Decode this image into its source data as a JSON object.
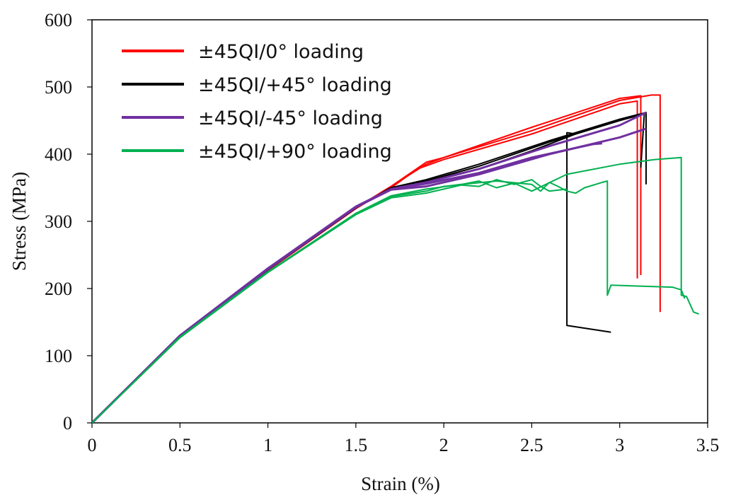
{
  "chart_data": {
    "type": "line",
    "title": "",
    "xlabel": "Strain (%)",
    "ylabel": "Stress (MPa)",
    "xlim": [
      0,
      3.5
    ],
    "ylim": [
      0,
      600
    ],
    "xticks": [
      "0",
      "0.5",
      "1",
      "1.5",
      "2",
      "2.5",
      "3",
      "3.5"
    ],
    "yticks": [
      "0",
      "100",
      "200",
      "300",
      "400",
      "500",
      "600"
    ],
    "grid": false,
    "legend_position": "top-left",
    "series": [
      {
        "name": "±45QI/0° loading",
        "color": "#ff0000",
        "curves": [
          [
            [
              0,
              0
            ],
            [
              0.5,
              128
            ],
            [
              1,
              228
            ],
            [
              1.5,
              320
            ],
            [
              1.7,
              352
            ],
            [
              1.9,
              388
            ],
            [
              2.0,
              395
            ],
            [
              2.5,
              440
            ],
            [
              3.0,
              483
            ],
            [
              3.12,
              487
            ],
            [
              3.12,
              220
            ]
          ],
          [
            [
              0,
              0
            ],
            [
              0.5,
              127
            ],
            [
              1,
              227
            ],
            [
              1.5,
              319
            ],
            [
              1.7,
              350
            ],
            [
              1.85,
              378
            ],
            [
              2.0,
              392
            ],
            [
              2.5,
              430
            ],
            [
              3.0,
              475
            ],
            [
              3.1,
              479
            ],
            [
              3.1,
              215
            ]
          ],
          [
            [
              0,
              0
            ],
            [
              0.5,
              128
            ],
            [
              1,
              228
            ],
            [
              1.5,
              320
            ],
            [
              1.7,
              352
            ],
            [
              1.9,
              385
            ],
            [
              2.0,
              395
            ],
            [
              2.5,
              435
            ],
            [
              3.0,
              480
            ],
            [
              3.18,
              488
            ],
            [
              3.23,
              488
            ],
            [
              3.23,
              165
            ]
          ]
        ]
      },
      {
        "name": "±45QI/+45° loading",
        "color": "#000000",
        "curves": [
          [
            [
              0,
              0
            ],
            [
              0.5,
              128
            ],
            [
              1,
              228
            ],
            [
              1.5,
              320
            ],
            [
              1.7,
              350
            ],
            [
              1.9,
              360
            ],
            [
              2.2,
              378
            ],
            [
              2.5,
              405
            ],
            [
              2.75,
              430
            ],
            [
              2.7,
              432
            ],
            [
              2.7,
              145
            ],
            [
              2.95,
              135
            ]
          ],
          [
            [
              0,
              0
            ],
            [
              0.5,
              128
            ],
            [
              1,
              228
            ],
            [
              1.5,
              320
            ],
            [
              1.7,
              350
            ],
            [
              1.9,
              362
            ],
            [
              2.2,
              385
            ],
            [
              2.6,
              420
            ],
            [
              3.0,
              452
            ],
            [
              3.15,
              462
            ],
            [
              3.15,
              355
            ]
          ],
          [
            [
              0,
              0
            ],
            [
              0.5,
              128
            ],
            [
              1,
              228
            ],
            [
              1.5,
              320
            ],
            [
              1.7,
              350
            ],
            [
              1.9,
              360
            ],
            [
              2.2,
              382
            ],
            [
              2.6,
              418
            ],
            [
              3.0,
              450
            ],
            [
              3.14,
              460
            ],
            [
              3.12,
              380
            ]
          ]
        ]
      },
      {
        "name": "±45QI/-45° loading",
        "color": "#7030a0",
        "curves": [
          [
            [
              0,
              0
            ],
            [
              0.5,
              130
            ],
            [
              1,
              230
            ],
            [
              1.5,
              322
            ],
            [
              1.7,
              348
            ],
            [
              1.9,
              356
            ],
            [
              2.2,
              372
            ],
            [
              2.5,
              395
            ],
            [
              2.85,
              415
            ],
            [
              2.9,
              416
            ]
          ],
          [
            [
              0,
              0
            ],
            [
              0.5,
              129
            ],
            [
              1,
              229
            ],
            [
              1.5,
              321
            ],
            [
              1.7,
              347
            ],
            [
              1.9,
              352
            ],
            [
              2.2,
              370
            ],
            [
              2.6,
              400
            ],
            [
              3.0,
              425
            ],
            [
              3.15,
              438
            ]
          ],
          [
            [
              0,
              0
            ],
            [
              0.5,
              129
            ],
            [
              1,
              229
            ],
            [
              1.5,
              321
            ],
            [
              1.7,
              348
            ],
            [
              1.9,
              358
            ],
            [
              2.2,
              378
            ],
            [
              2.6,
              412
            ],
            [
              3.0,
              443
            ],
            [
              3.15,
              462
            ]
          ]
        ]
      },
      {
        "name": "±45QI/+90° loading",
        "color": "#00b050",
        "curves": [
          [
            [
              0,
              0
            ],
            [
              0.5,
              128
            ],
            [
              1,
              225
            ],
            [
              1.5,
              312
            ],
            [
              1.7,
              338
            ],
            [
              1.9,
              348
            ],
            [
              2.1,
              355
            ],
            [
              2.3,
              360
            ],
            [
              2.5,
              355
            ],
            [
              2.55,
              345
            ],
            [
              2.6,
              358
            ],
            [
              2.65,
              352
            ],
            [
              2.7,
              345
            ],
            [
              2.75,
              342
            ],
            [
              2.8,
              350
            ],
            [
              2.9,
              358
            ],
            [
              2.93,
              360
            ],
            [
              2.93,
              190
            ],
            [
              2.95,
              205
            ],
            [
              3.3,
              202
            ],
            [
              3.35,
              198
            ],
            [
              3.37,
              185
            ]
          ],
          [
            [
              0,
              0
            ],
            [
              0.5,
              127
            ],
            [
              1,
              224
            ],
            [
              1.5,
              311
            ],
            [
              1.7,
              337
            ],
            [
              1.9,
              345
            ],
            [
              2.0,
              352
            ],
            [
              2.1,
              355
            ],
            [
              2.2,
              360
            ],
            [
              2.3,
              350
            ],
            [
              2.4,
              357
            ],
            [
              2.5,
              345
            ],
            [
              2.7,
              370
            ],
            [
              3.0,
              385
            ],
            [
              3.2,
              392
            ],
            [
              3.35,
              395
            ],
            [
              3.35,
              190
            ],
            [
              3.38,
              188
            ],
            [
              3.42,
              165
            ],
            [
              3.45,
              162
            ]
          ],
          [
            [
              0,
              0
            ],
            [
              0.5,
              127
            ],
            [
              1,
              224
            ],
            [
              1.5,
              310
            ],
            [
              1.7,
              335
            ],
            [
              1.9,
              342
            ],
            [
              2.0,
              348
            ],
            [
              2.1,
              354
            ],
            [
              2.2,
              352
            ],
            [
              2.3,
              362
            ],
            [
              2.4,
              355
            ],
            [
              2.5,
              362
            ],
            [
              2.55,
              352
            ],
            [
              2.6,
              345
            ],
            [
              2.7,
              348
            ]
          ]
        ]
      }
    ]
  }
}
